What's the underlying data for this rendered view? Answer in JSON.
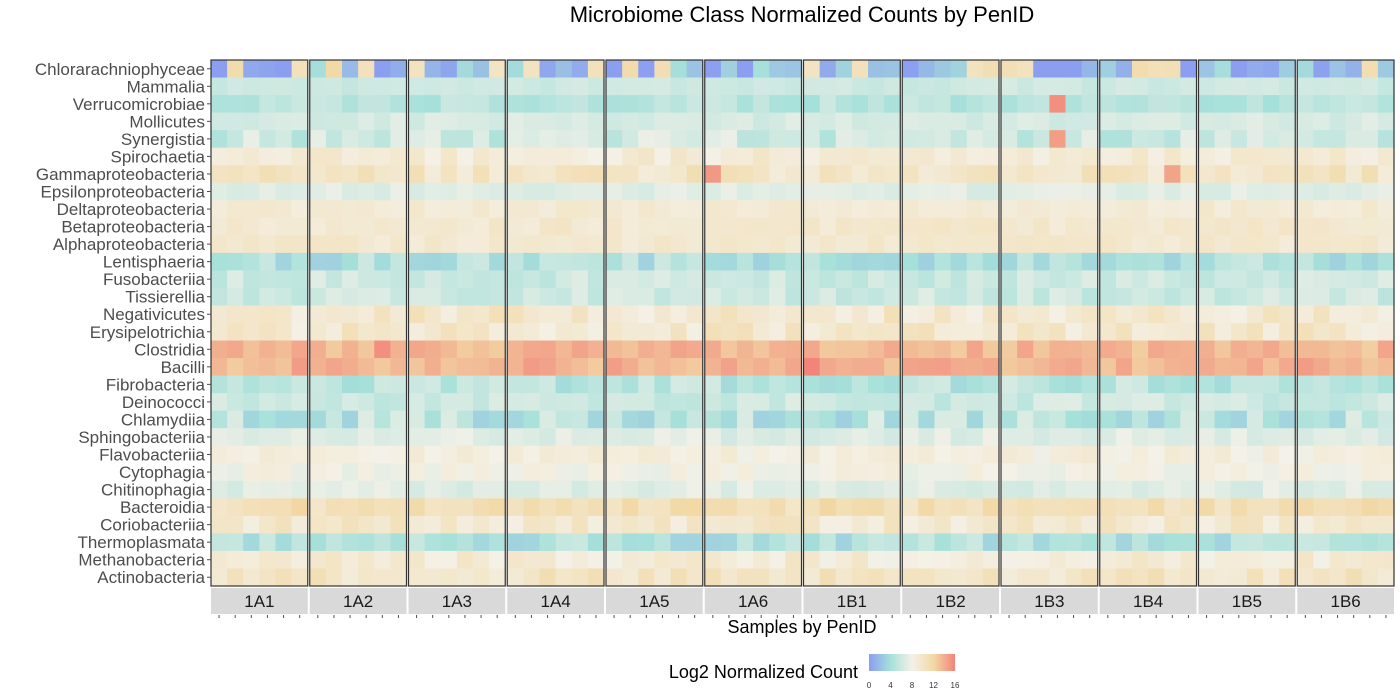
{
  "chart_data": {
    "type": "heatmap",
    "title": "Microbiome Class Normalized Counts by PenID",
    "xlabel": "Samples by PenID",
    "ylabel": "",
    "legend": {
      "title": "Log2 Normalized Count",
      "ticks": [
        "0",
        "4",
        "8",
        "12",
        "16"
      ],
      "range": [
        0,
        16
      ],
      "colors": [
        "#8c9ef0",
        "#a6e0da",
        "#f4f1e8",
        "#f2d9a6",
        "#f2847a"
      ],
      "placement": "bottom"
    },
    "panels": [
      "1A1",
      "1A2",
      "1A3",
      "1A4",
      "1A5",
      "1A6",
      "1B1",
      "1B2",
      "1B3",
      "1B4",
      "1B5",
      "1B6"
    ],
    "samples_per_panel": 6,
    "rows": [
      "Chlorarachniophyceae",
      "Mammalia",
      "Verrucomicrobiae",
      "Mollicutes",
      "Synergistia",
      "Spirochaetia",
      "Gammaproteobacteria",
      "Epsilonproteobacteria",
      "Deltaproteobacteria",
      "Betaproteobacteria",
      "Alphaproteobacteria",
      "Lentisphaeria",
      "Fusobacteriia",
      "Tissierellia",
      "Negativicutes",
      "Erysipelotrichia",
      "Clostridia",
      "Bacilli",
      "Fibrobacteria",
      "Deinococci",
      "Chlamydiia",
      "Sphingobacteriia",
      "Flavobacteriia",
      "Cytophagia",
      "Chitinophagia",
      "Bacteroidia",
      "Coriobacteriia",
      "Thermoplasmata",
      "Methanobacteria",
      "Actinobacteria"
    ],
    "row_base_values": [
      1.5,
      6.0,
      5.0,
      6.5,
      6.0,
      9.0,
      10.0,
      7.0,
      9.2,
      9.5,
      9.5,
      4.5,
      6.0,
      6.0,
      9.5,
      9.5,
      13.5,
      13.8,
      5.0,
      6.0,
      5.0,
      7.0,
      8.5,
      8.0,
      7.0,
      11.0,
      9.5,
      4.5,
      9.0,
      10.0
    ],
    "row_variation": [
      2.5,
      0.5,
      1.0,
      0.6,
      1.6,
      1.0,
      1.2,
      0.6,
      0.6,
      0.6,
      0.6,
      1.5,
      1.0,
      1.0,
      1.4,
      1.4,
      1.0,
      1.2,
      1.4,
      1.0,
      2.0,
      0.8,
      0.8,
      0.8,
      0.8,
      1.2,
      1.2,
      1.4,
      1.2,
      1.2
    ],
    "highlights": [
      {
        "row": "Verrucomicrobiae",
        "panel": "1B3",
        "sample": 4,
        "value": 15.5
      },
      {
        "row": "Synergistia",
        "panel": "1B3",
        "sample": 4,
        "value": 14.8
      },
      {
        "row": "Gammaproteobacteria",
        "panel": "1A6",
        "sample": 1,
        "value": 15.0
      },
      {
        "row": "Gammaproteobacteria",
        "panel": "1B4",
        "sample": 5,
        "value": 14.5
      },
      {
        "row": "Bacilli",
        "panel": "1B1",
        "sample": 1,
        "value": 16.0
      },
      {
        "row": "Clostridia",
        "panel": "1A2",
        "sample": 5,
        "value": 15.5
      }
    ]
  }
}
